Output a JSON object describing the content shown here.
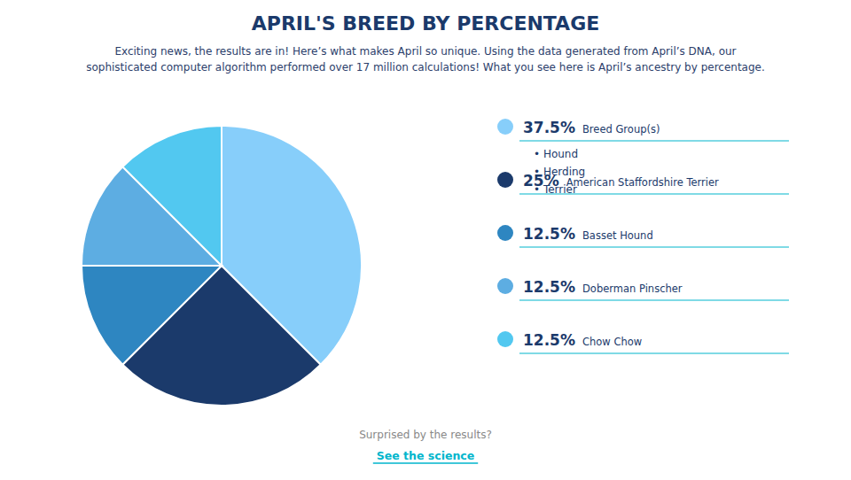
{
  "chart_data": {
    "type": "pie",
    "title": "APRIL'S BREED BY PERCENTAGE",
    "subtitle": [
      "Exciting news, the results are in! Here’s what makes April so unique. Using the data generated from April’s DNA, our",
      "sophisticated computer algorithm performed over 17 million calculations! What you see here is April’s ancestry by percentage."
    ],
    "categories": [
      "Breed Group(s)",
      "American Staffordshire Terrier",
      "Basset Hound",
      "Doberman Pinscher",
      "Chow Chow"
    ],
    "values": [
      37.5,
      25.0,
      12.5,
      12.5,
      12.5
    ],
    "value_labels": [
      "37.5%",
      "25%",
      "12.5%",
      "12.5%",
      "12.5%"
    ],
    "colors": [
      "#87CEFA",
      "#1B3A6B",
      "#2E86C1",
      "#5DADE2",
      "#52C8F0"
    ],
    "legend": "right",
    "annotations": [
      {
        "text": "• Hound",
        "category": "Breed Group(s)"
      },
      {
        "text": "• Herding",
        "category": "Breed Group(s)"
      },
      {
        "text": "• Terrier",
        "category": "Breed Group(s)"
      },
      {
        "text": "Surprised by the results?"
      },
      {
        "text": "See the science"
      }
    ]
  }
}
